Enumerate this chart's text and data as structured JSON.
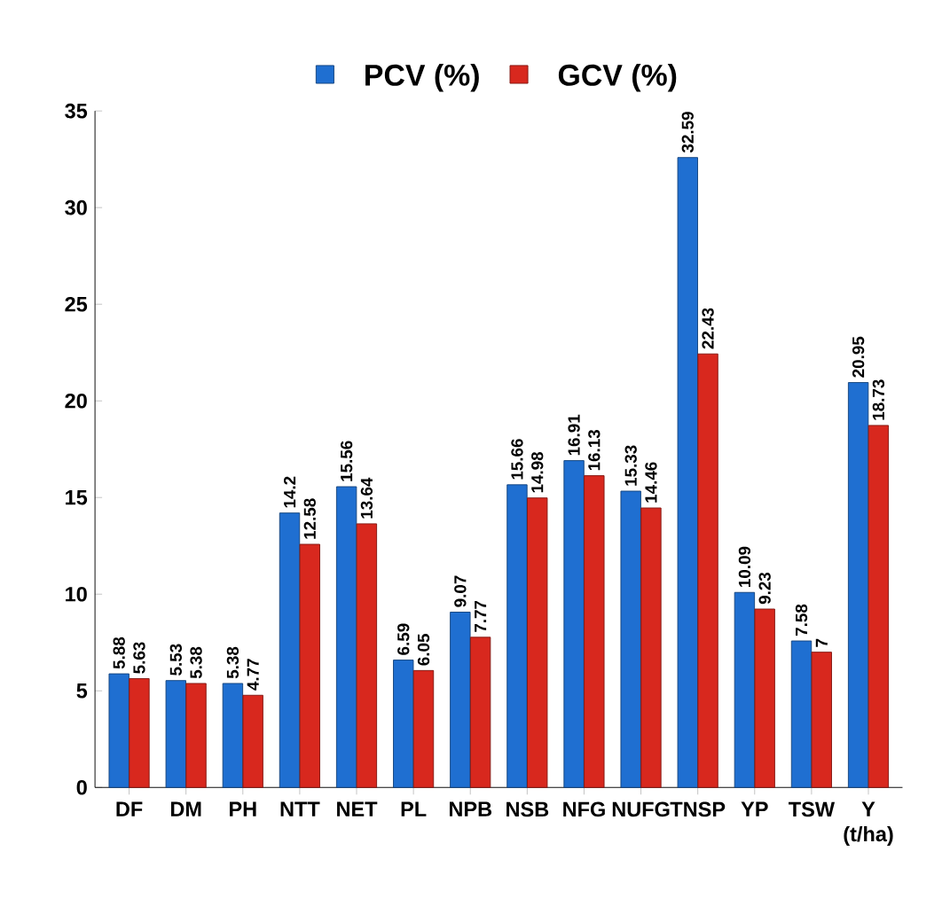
{
  "chart_data": {
    "type": "bar",
    "categories": [
      "DF",
      "DM",
      "PH",
      "NTT",
      "NET",
      "PL",
      "NPB",
      "NSB",
      "NFG",
      "NUFG",
      "TNSP",
      "YP",
      "TSW",
      "Y (t/ha)"
    ],
    "series": [
      {
        "name": "PCV (%)",
        "color": "#1f6fd1",
        "values": [
          5.88,
          5.53,
          5.38,
          14.2,
          15.56,
          6.59,
          9.07,
          15.66,
          16.91,
          15.33,
          32.59,
          10.09,
          7.58,
          20.95
        ]
      },
      {
        "name": "GCV (%)",
        "color": "#d8281e",
        "values": [
          5.63,
          5.38,
          4.77,
          12.58,
          13.64,
          6.05,
          7.77,
          14.98,
          16.13,
          14.46,
          22.43,
          9.23,
          7,
          18.73
        ]
      }
    ],
    "ylim": [
      0,
      35
    ],
    "yticks": [
      0,
      5,
      10,
      15,
      20,
      25,
      30,
      35
    ],
    "data_labels": true,
    "legend": "top",
    "grid": false
  }
}
